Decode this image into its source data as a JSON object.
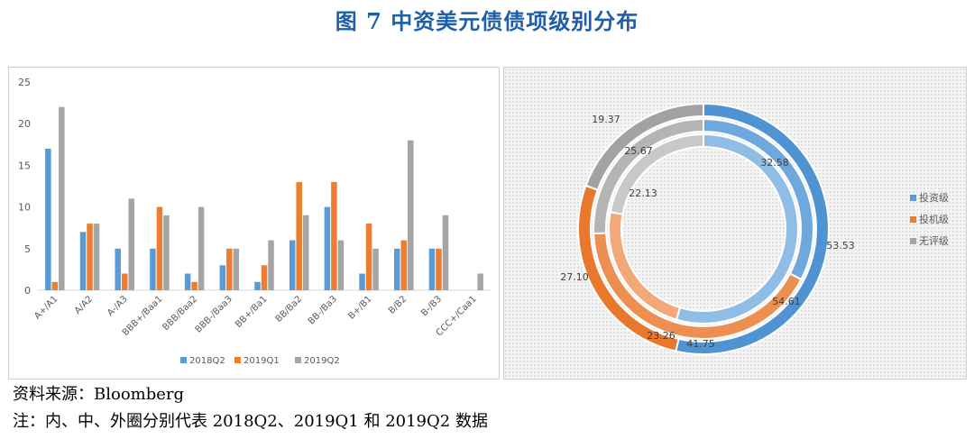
{
  "figure_title": "图 7  中资美元债债项级别分布",
  "source_text": "资料来源：Bloomberg",
  "note_text": "注：内、中、外圈分别代表 2018Q2、2019Q1 和 2019Q2 数据",
  "colors": {
    "s2018Q2": "#5b9bd5",
    "s2019Q1": "#ed7d31",
    "s2019Q2": "#a5a5a5"
  },
  "chart_data": [
    {
      "type": "bar",
      "categories": [
        "A+/A1",
        "A/A2",
        "A-/A3",
        "BBB+/Baa1",
        "BBB/Baa2",
        "BBB-/Baa3",
        "BB+/Ba1",
        "BB/Ba2",
        "BB-/Ba3",
        "B+/B1",
        "B/B2",
        "B-/B3",
        "CCC+/Caa1"
      ],
      "series": [
        {
          "name": "2018Q2",
          "values": [
            17,
            7,
            5,
            5,
            2,
            3,
            1,
            6,
            10,
            2,
            5,
            5,
            0
          ]
        },
        {
          "name": "2019Q1",
          "values": [
            1,
            8,
            2,
            10,
            1,
            5,
            3,
            13,
            13,
            8,
            6,
            5,
            0
          ]
        },
        {
          "name": "2019Q2",
          "values": [
            22,
            8,
            11,
            9,
            10,
            5,
            6,
            9,
            6,
            5,
            18,
            9,
            2
          ]
        }
      ],
      "ylim": [
        0,
        25
      ],
      "yticks": [
        0,
        5,
        10,
        15,
        20,
        25
      ],
      "grid": false,
      "legend_position": "bottom"
    },
    {
      "type": "pie",
      "subtype": "donut",
      "categories": [
        "投资级",
        "投机级",
        "无评级"
      ],
      "rings": [
        {
          "name": "2018Q2",
          "values": [
            54.61,
            23.26,
            22.13
          ]
        },
        {
          "name": "2019Q1",
          "values": [
            32.58,
            41.75,
            25.67
          ]
        },
        {
          "name": "2019Q2",
          "values": [
            53.53,
            27.1,
            19.37
          ]
        }
      ],
      "legend_position": "right"
    }
  ]
}
